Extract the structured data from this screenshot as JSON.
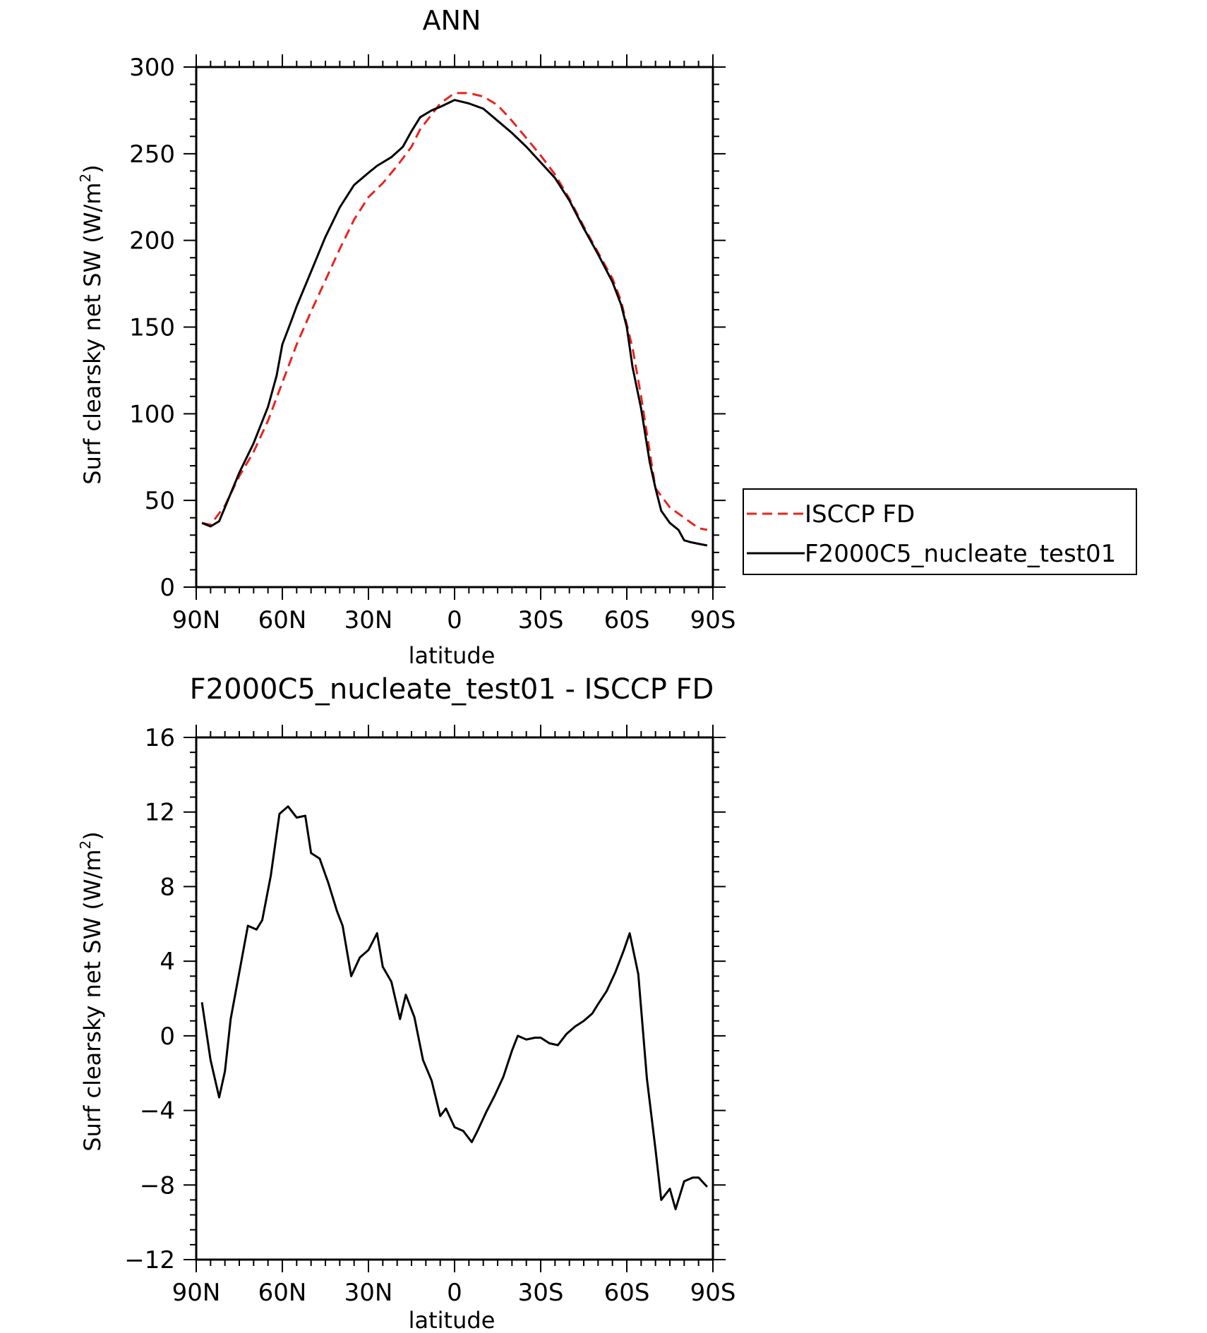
{
  "chart_data": [
    {
      "type": "line",
      "title": "ANN",
      "xlabel": "latitude",
      "ylabel": "Surf clearsky net SW (W/m²)",
      "ylabel_main": "Surf clearsky net SW (W/m",
      "ylabel_sup": "2",
      "ylabel_end": ")",
      "xlim": [
        90,
        -90
      ],
      "ylim": [
        0,
        300
      ],
      "xticks": [
        90,
        60,
        30,
        0,
        -30,
        -60,
        -90
      ],
      "xtick_labels": [
        "90N",
        "60N",
        "30N",
        "0",
        "30S",
        "60S",
        "90S"
      ],
      "yticks": [
        0,
        50,
        100,
        150,
        200,
        250,
        300
      ],
      "ytick_labels": [
        "0",
        "50",
        "100",
        "150",
        "200",
        "250",
        "300"
      ],
      "legend_position": "right",
      "legend": [
        "ISCCP FD",
        "F2000C5_nucleate_test01"
      ],
      "series": [
        {
          "name": "ISCCP FD",
          "color": "#e8251e",
          "dash": "dashed",
          "x": [
            88,
            85,
            80,
            75,
            70,
            65,
            60,
            55,
            50,
            45,
            40,
            35,
            30,
            25,
            20,
            15,
            12,
            5,
            0,
            -5,
            -10,
            -15,
            -20,
            -25,
            -30,
            -35,
            -40,
            -45,
            -50,
            -55,
            -58,
            -62,
            -65,
            -68,
            -70,
            -75,
            -80,
            -85,
            -88
          ],
          "y": [
            37,
            36,
            47,
            64,
            78,
            96,
            118,
            140,
            159,
            177,
            195,
            212,
            225,
            233,
            243,
            254,
            264,
            279,
            285,
            285,
            283,
            278,
            269,
            259,
            249,
            238,
            224,
            208,
            193,
            178,
            165,
            138,
            110,
            78,
            57,
            46,
            40,
            34,
            33
          ]
        },
        {
          "name": "F2000C5_nucleate_test01",
          "color": "#000000",
          "dash": "solid",
          "x": [
            88,
            85,
            82,
            80,
            75,
            70,
            65,
            62,
            60,
            57,
            55,
            50,
            45,
            40,
            35,
            30,
            27,
            22,
            18,
            15,
            12,
            8,
            5,
            0,
            -5,
            -10,
            -15,
            -20,
            -25,
            -30,
            -35,
            -40,
            -45,
            -50,
            -55,
            -58,
            -60,
            -62,
            -65,
            -68,
            -70,
            -72,
            -75,
            -78,
            -80,
            -82,
            -85,
            -88
          ],
          "y": [
            37,
            35,
            38,
            46,
            66,
            83,
            104,
            122,
            140,
            153,
            162,
            182,
            202,
            219,
            232,
            239,
            243,
            248,
            254,
            263,
            271,
            275,
            277,
            281,
            279,
            276,
            269,
            262,
            254,
            245,
            236,
            223,
            207,
            192,
            176,
            163,
            150,
            127,
            103,
            72,
            57,
            44,
            37,
            33,
            27,
            26,
            25,
            24
          ]
        }
      ]
    },
    {
      "type": "line",
      "title": "F2000C5_nucleate_test01 - ISCCP FD",
      "xlabel": "latitude",
      "ylabel": "Surf clearsky net SW (W/m²)",
      "ylabel_main": "Surf clearsky net SW (W/m",
      "ylabel_sup": "2",
      "ylabel_end": ")",
      "xlim": [
        90,
        -90
      ],
      "ylim": [
        -12,
        16
      ],
      "xticks": [
        90,
        60,
        30,
        0,
        -30,
        -60,
        -90
      ],
      "xtick_labels": [
        "90N",
        "60N",
        "30N",
        "0",
        "30S",
        "60S",
        "90S"
      ],
      "yticks": [
        -12,
        -8,
        -4,
        0,
        4,
        8,
        12,
        16
      ],
      "ytick_labels": [
        "−12",
        "−8",
        "−4",
        "0",
        "4",
        "8",
        "12",
        "16"
      ],
      "series": [
        {
          "color": "#000000",
          "dash": "solid",
          "x": [
            88,
            85,
            82,
            80,
            78,
            75,
            72,
            69,
            67,
            64,
            61,
            58,
            55,
            52,
            50,
            47,
            44,
            41,
            39,
            36,
            33,
            30,
            27,
            25,
            22,
            19,
            17,
            14,
            11,
            8,
            5,
            3,
            0,
            -3,
            -6,
            -8,
            -11,
            -14,
            -17,
            -20,
            -22,
            -25,
            -28,
            -30,
            -33,
            -36,
            -39,
            -42,
            -45,
            -48,
            -50,
            -53,
            -56,
            -59,
            -61,
            -64,
            -67,
            -70,
            -72,
            -75,
            -77,
            -80,
            -83,
            -85,
            -88
          ],
          "y": [
            1.8,
            -1.3,
            -3.3,
            -1.9,
            0.9,
            3.4,
            5.9,
            5.7,
            6.2,
            8.6,
            11.9,
            12.3,
            11.7,
            11.8,
            9.8,
            9.5,
            8.2,
            6.7,
            5.9,
            3.2,
            4.2,
            4.6,
            5.5,
            3.7,
            2.9,
            0.9,
            2.2,
            1.0,
            -1.3,
            -2.4,
            -4.3,
            -3.9,
            -4.9,
            -5.1,
            -5.7,
            -5.1,
            -4.1,
            -3.2,
            -2.2,
            -0.8,
            0.0,
            -0.2,
            -0.1,
            -0.1,
            -0.4,
            -0.5,
            0.1,
            0.5,
            0.8,
            1.2,
            1.7,
            2.4,
            3.4,
            4.6,
            5.5,
            3.3,
            -2.3,
            -6.1,
            -8.8,
            -8.2,
            -9.3,
            -7.8,
            -7.6,
            -7.6,
            -8.1
          ]
        }
      ]
    }
  ]
}
